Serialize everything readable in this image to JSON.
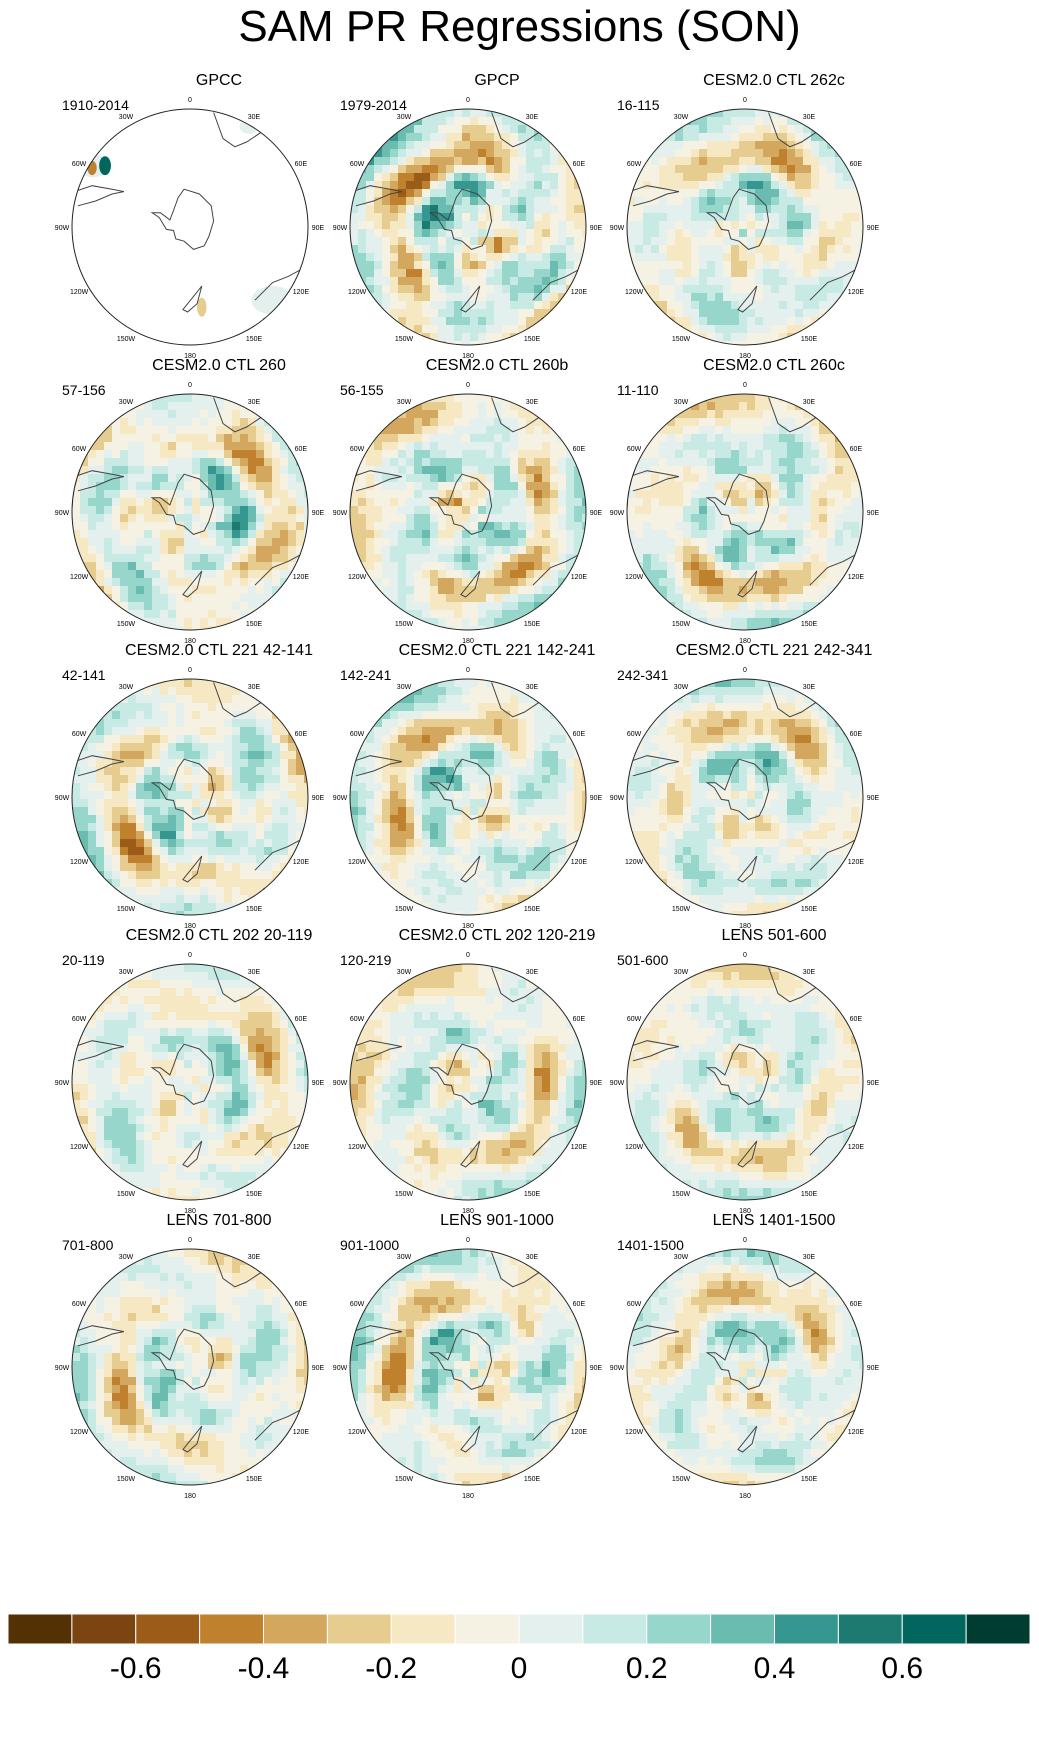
{
  "title": "SAM PR Regressions (SON)",
  "panels": [
    {
      "title": "GPCC",
      "period": "1910-2014",
      "mask": true,
      "seed": 1,
      "strength": 0.15
    },
    {
      "title": "GPCP",
      "period": "1979-2014",
      "mask": false,
      "seed": 2,
      "strength": 0.55
    },
    {
      "title": "CESM2.0 CTL 262c",
      "period": "16-115",
      "mask": false,
      "seed": 3,
      "strength": 0.4
    },
    {
      "title": "CESM2.0 CTL 260",
      "period": "57-156",
      "mask": false,
      "seed": 4,
      "strength": 0.45
    },
    {
      "title": "CESM2.0 CTL 260b",
      "period": "56-155",
      "mask": false,
      "seed": 5,
      "strength": 0.45
    },
    {
      "title": "CESM2.0 CTL 260c",
      "period": "11-110",
      "mask": false,
      "seed": 6,
      "strength": 0.42
    },
    {
      "title": "CESM2.0 CTL 221 42-141",
      "period": "42-141",
      "mask": false,
      "seed": 7,
      "strength": 0.45
    },
    {
      "title": "CESM2.0 CTL 221 142-241",
      "period": "142-241",
      "mask": false,
      "seed": 8,
      "strength": 0.45
    },
    {
      "title": "CESM2.0 CTL 221 242-341",
      "period": "242-341",
      "mask": false,
      "seed": 9,
      "strength": 0.4
    },
    {
      "title": "CESM2.0 CTL 202 20-119",
      "period": "20-119",
      "mask": false,
      "seed": 10,
      "strength": 0.38
    },
    {
      "title": "CESM2.0 CTL 202 120-219",
      "period": "120-219",
      "mask": false,
      "seed": 11,
      "strength": 0.4
    },
    {
      "title": "LENS 501-600",
      "period": "501-600",
      "mask": false,
      "seed": 12,
      "strength": 0.35
    },
    {
      "title": "LENS 701-800",
      "period": "701-800",
      "mask": false,
      "seed": 13,
      "strength": 0.38
    },
    {
      "title": "LENS 901-1000",
      "period": "901-1000",
      "mask": false,
      "seed": 14,
      "strength": 0.45
    },
    {
      "title": "LENS 1401-1500",
      "period": "1401-1500",
      "mask": false,
      "seed": 15,
      "strength": 0.4
    }
  ],
  "longitude_labels": [
    "0",
    "30E",
    "60E",
    "90E",
    "120E",
    "150E",
    "180",
    "150W",
    "120W",
    "90W",
    "60W",
    "30W"
  ],
  "colorbar": {
    "colors": [
      "#543005",
      "#7a4510",
      "#9a5c18",
      "#bf812d",
      "#d3a85e",
      "#e6cc8f",
      "#f6e8c3",
      "#f5f1e3",
      "#e3f0ee",
      "#c7eae5",
      "#97d6cb",
      "#6bbcb0",
      "#35978f",
      "#1d7a70",
      "#01665e",
      "#003c30"
    ],
    "tick_labels": [
      "-0.6",
      "-0.4",
      "-0.2",
      "0",
      "0.2",
      "0.4",
      "0.6"
    ],
    "tick_values": [
      -0.6,
      -0.4,
      -0.2,
      0,
      0.2,
      0.4,
      0.6
    ],
    "range": [
      -0.8,
      0.8
    ]
  }
}
